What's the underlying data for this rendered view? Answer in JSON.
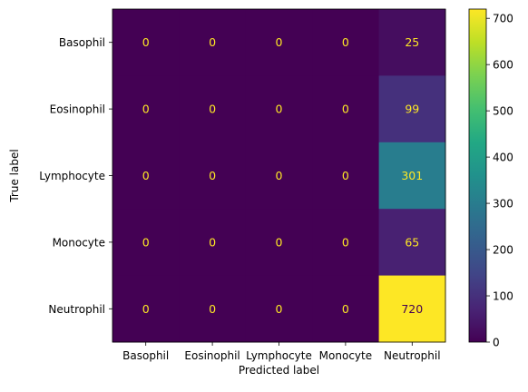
{
  "chart_data": {
    "type": "heatmap",
    "title": "",
    "xlabel": "Predicted label",
    "ylabel": "True label",
    "x_categories": [
      "Basophil",
      "Eosinophil",
      "Lymphocyte",
      "Monocyte",
      "Neutrophil"
    ],
    "y_categories": [
      "Basophil",
      "Eosinophil",
      "Lymphocyte",
      "Monocyte",
      "Neutrophil"
    ],
    "values": [
      [
        0,
        0,
        0,
        0,
        25
      ],
      [
        0,
        0,
        0,
        0,
        99
      ],
      [
        0,
        0,
        0,
        0,
        301
      ],
      [
        0,
        0,
        0,
        0,
        65
      ],
      [
        0,
        0,
        0,
        0,
        720
      ]
    ],
    "colormap": "viridis",
    "color_range": [
      0,
      720
    ],
    "colorbar_ticks": [
      0,
      100,
      200,
      300,
      400,
      500,
      600,
      700
    ],
    "annotation_colors": {
      "on_dark": "#fde725",
      "on_light": "#440154"
    }
  }
}
